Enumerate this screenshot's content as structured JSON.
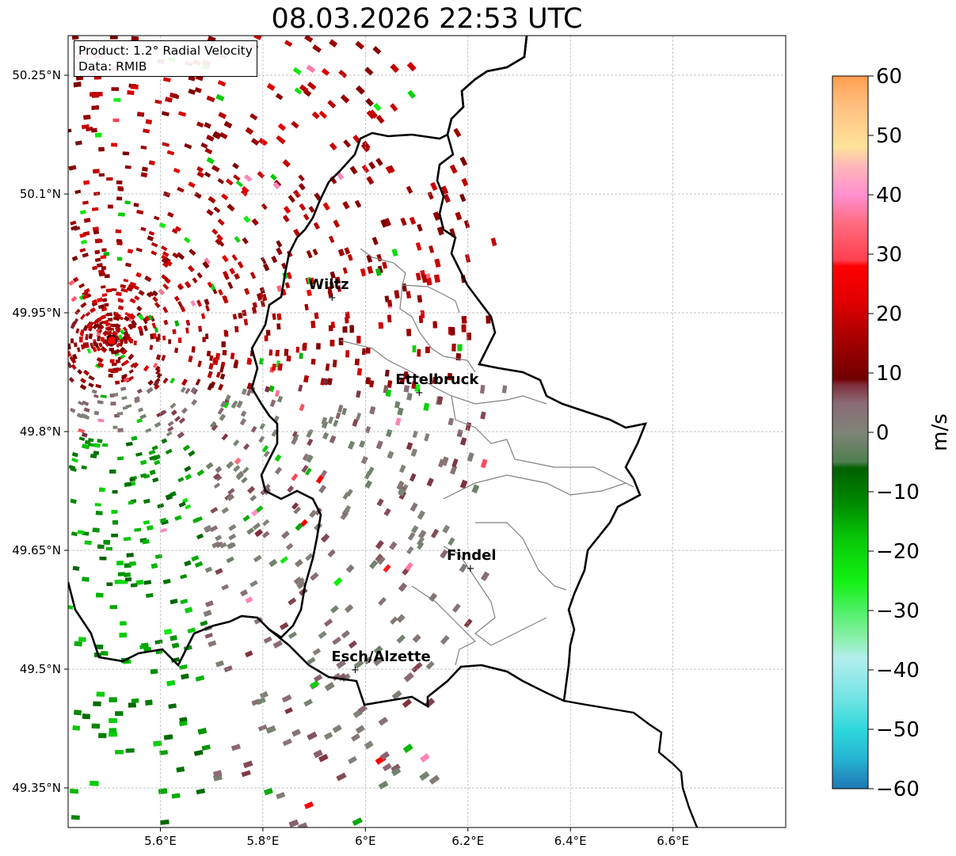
{
  "title": "08.03.2026 22:53 UTC",
  "info": {
    "product_line": "Product: 1.2° Radial Velocity",
    "data_line": "Data: RMIB"
  },
  "map": {
    "lon_range": [
      5.42,
      6.82
    ],
    "lat_range": [
      49.3,
      50.3
    ],
    "x_ticks": [
      {
        "value": 5.6,
        "label": "5.6°E"
      },
      {
        "value": 5.8,
        "label": "5.8°E"
      },
      {
        "value": 6.0,
        "label": "6°E"
      },
      {
        "value": 6.2,
        "label": "6.2°E"
      },
      {
        "value": 6.4,
        "label": "6.4°E"
      },
      {
        "value": 6.6,
        "label": "6.6°E"
      }
    ],
    "y_ticks": [
      {
        "value": 49.35,
        "label": "49.35°N"
      },
      {
        "value": 49.5,
        "label": "49.5°N"
      },
      {
        "value": 49.65,
        "label": "49.65°N"
      },
      {
        "value": 49.8,
        "label": "49.8°N"
      },
      {
        "value": 49.95,
        "label": "49.95°N"
      },
      {
        "value": 50.1,
        "label": "50.1°N"
      },
      {
        "value": 50.25,
        "label": "50.25°N"
      }
    ],
    "radar_site": {
      "lon": 5.505,
      "lat": 49.915,
      "color": "#ff0000"
    },
    "cities": [
      {
        "name": "Wiltz",
        "lon": 5.935,
        "lat": 49.97
      },
      {
        "name": "Ettelbruck",
        "lon": 6.105,
        "lat": 49.85
      },
      {
        "name": "Findel",
        "lon": 6.205,
        "lat": 49.628
      },
      {
        "name": "Esch/Alzette",
        "lon": 5.98,
        "lat": 49.5
      }
    ],
    "border_color": "#000000",
    "canton_color": "#808080"
  },
  "colorbar": {
    "label": "m/s",
    "vmin": -60,
    "vmax": 60,
    "ticks": [
      {
        "value": 60,
        "label": "60"
      },
      {
        "value": 50,
        "label": "50"
      },
      {
        "value": 40,
        "label": "40"
      },
      {
        "value": 30,
        "label": "30"
      },
      {
        "value": 20,
        "label": "20"
      },
      {
        "value": 10,
        "label": "10"
      },
      {
        "value": 0,
        "label": "0"
      },
      {
        "value": -10,
        "label": "−10"
      },
      {
        "value": -20,
        "label": "−20"
      },
      {
        "value": -30,
        "label": "−30"
      },
      {
        "value": -40,
        "label": "−40"
      },
      {
        "value": -50,
        "label": "−50"
      },
      {
        "value": -60,
        "label": "−60"
      }
    ],
    "stops": [
      {
        "value": -60,
        "color": "#1f77b4"
      },
      {
        "value": -55,
        "color": "#25b3d1"
      },
      {
        "value": -50,
        "color": "#2fd8dc"
      },
      {
        "value": -45,
        "color": "#6fe3e3"
      },
      {
        "value": -38,
        "color": "#b4eeee"
      },
      {
        "value": -35,
        "color": "#8ef0b0"
      },
      {
        "value": -30,
        "color": "#4ff066"
      },
      {
        "value": -25,
        "color": "#12f012"
      },
      {
        "value": -18,
        "color": "#08c808"
      },
      {
        "value": -12,
        "color": "#008a00"
      },
      {
        "value": -6,
        "color": "#006000"
      },
      {
        "value": -5,
        "color": "#4f7f50"
      },
      {
        "value": 0,
        "color": "#7f8478"
      },
      {
        "value": 5,
        "color": "#8a6a75"
      },
      {
        "value": 8,
        "color": "#7e2e3c"
      },
      {
        "value": 9,
        "color": "#700000"
      },
      {
        "value": 15,
        "color": "#a00000"
      },
      {
        "value": 22,
        "color": "#e00000"
      },
      {
        "value": 28,
        "color": "#ff0000"
      },
      {
        "value": 29,
        "color": "#ff4050"
      },
      {
        "value": 35,
        "color": "#ff6a7e"
      },
      {
        "value": 40,
        "color": "#ff90d0"
      },
      {
        "value": 45,
        "color": "#ffb8b8"
      },
      {
        "value": 48,
        "color": "#ffe39a"
      },
      {
        "value": 55,
        "color": "#ffc080"
      },
      {
        "value": 60,
        "color": "#ff9e50"
      }
    ]
  }
}
